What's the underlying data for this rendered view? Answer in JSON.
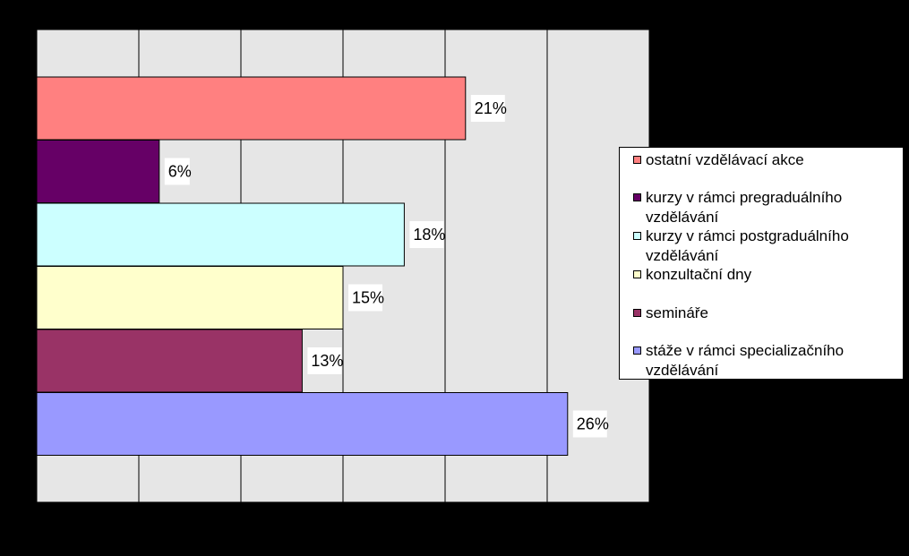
{
  "chart_data": {
    "type": "bar",
    "orientation": "horizontal",
    "categories": [
      "ostatní vzdělávací akce",
      "kurzy v rámci pregraduálního vzdělávání",
      "kurzy v rámci postgraduálního vzdělávání",
      "konzultační dny",
      "semináře",
      "stáže v rámci specializačního vzdělávání"
    ],
    "values": [
      21,
      6,
      18,
      15,
      13,
      26
    ],
    "data_labels": [
      "21%",
      "6%",
      "18%",
      "15%",
      "13%",
      "26%"
    ],
    "colors": [
      "#ff8080",
      "#660066",
      "#ccffff",
      "#ffffcc",
      "#993366",
      "#9999ff"
    ],
    "xlim": [
      0,
      30
    ],
    "grid": true,
    "legend_position": "right",
    "title": "",
    "xlabel": "",
    "ylabel": ""
  },
  "legend": {
    "items": [
      {
        "label": "ostatní vzdělávací akce",
        "color": "#ff8080"
      },
      {
        "label": "kurzy v rámci pregraduálního vzdělávání",
        "color": "#660066"
      },
      {
        "label": "kurzy v rámci postgraduálního vzdělávání",
        "color": "#ccffff"
      },
      {
        "label": "konzultační dny",
        "color": "#ffffcc"
      },
      {
        "label": "semináře",
        "color": "#993366"
      },
      {
        "label": "stáže v rámci specializačního vzdělávání",
        "color": "#9999ff"
      }
    ]
  },
  "colors": {
    "background": "#000000",
    "plot_area": "#e6e6e6",
    "gridline": "#000000",
    "label_box": "#ffffff"
  }
}
